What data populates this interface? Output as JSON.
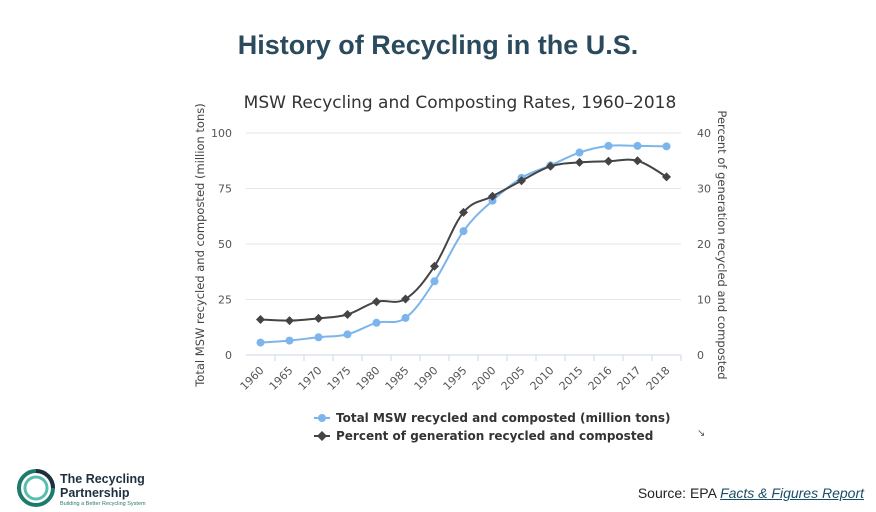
{
  "slide": {
    "title": "History of Recycling in the U.S."
  },
  "chart_data": {
    "type": "line",
    "title": "MSW Recycling and Composting Rates, 1960–2018",
    "categories": [
      "1960",
      "1965",
      "1970",
      "1975",
      "1980",
      "1985",
      "1990",
      "1995",
      "2000",
      "2005",
      "2010",
      "2015",
      "2016",
      "2017",
      "2018"
    ],
    "y_left": {
      "label": "Total MSW recycled and composted (million tons)",
      "min": 0,
      "max": 100,
      "ticks": [
        0,
        25,
        50,
        75,
        100
      ]
    },
    "y_right": {
      "label": "Percent of generation recycled and composted",
      "min": 0,
      "max": 40,
      "ticks": [
        0,
        10,
        20,
        30,
        40
      ]
    },
    "series": [
      {
        "name": "Total MSW recycled and composted (million tons)",
        "axis": "left",
        "color": "#7cb5ec",
        "marker": "circle",
        "values": [
          5.6,
          6.5,
          8.0,
          9.3,
          14.5,
          16.7,
          33.2,
          55.8,
          69.5,
          79.8,
          85.4,
          91.2,
          94.2,
          94.2,
          94.0
        ]
      },
      {
        "name": "Percent of generation recycled and composted",
        "axis": "right",
        "color": "#434348",
        "marker": "diamond",
        "values": [
          6.4,
          6.2,
          6.6,
          7.3,
          9.6,
          10.1,
          16.0,
          25.7,
          28.6,
          31.4,
          34.0,
          34.7,
          34.9,
          35.0,
          32.1
        ]
      }
    ],
    "grid": true,
    "legend_position": "bottom"
  },
  "source": {
    "prefix": "Source: EPA ",
    "link_text": "Facts & Figures Report"
  },
  "logo": {
    "line1": "The Recycling",
    "line2": "Partnership",
    "tagline": "Building a Better Recycling System"
  }
}
